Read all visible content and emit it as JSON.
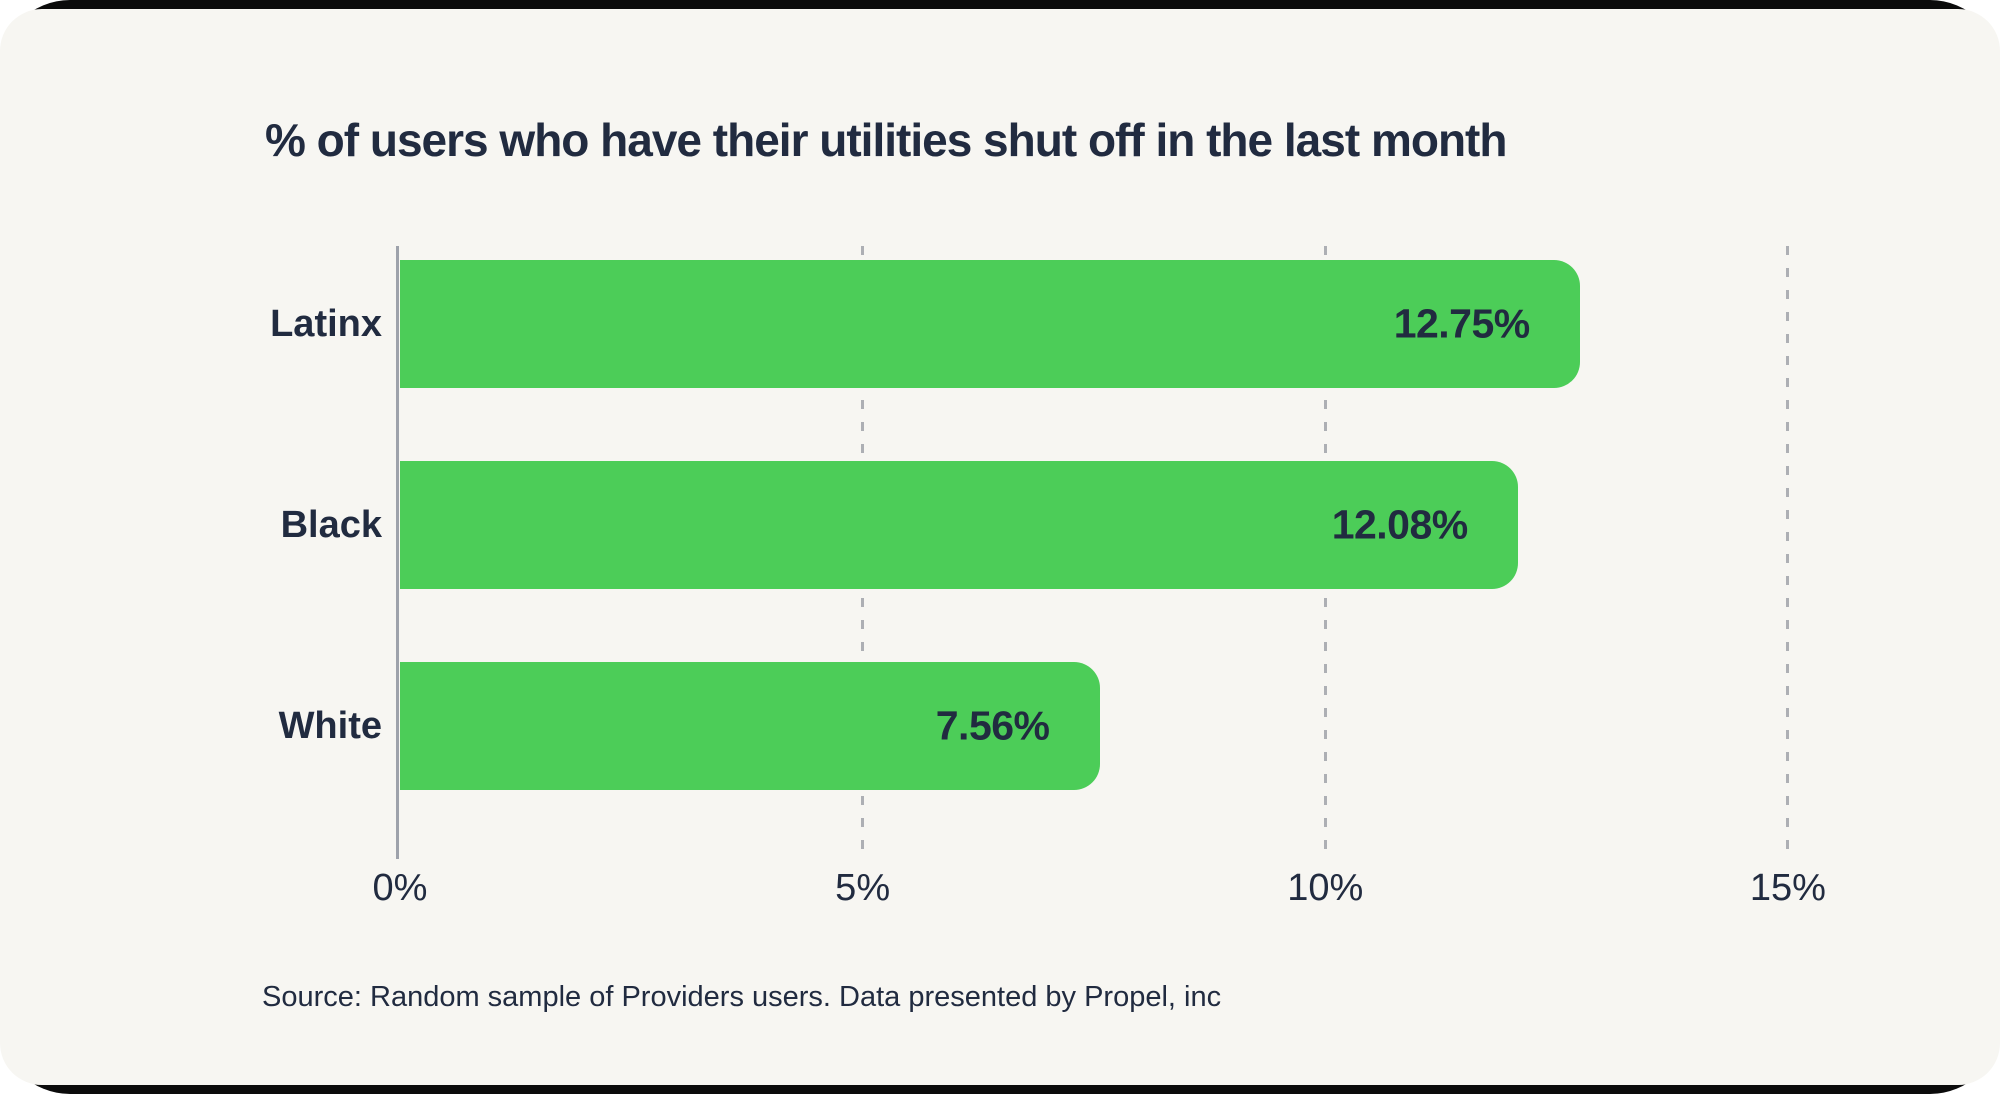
{
  "title": "% of users who have their utilities shut off in the last month",
  "source": "Source: Random sample of Providers users. Data presented by Propel, inc",
  "colors": {
    "bar": "#4ccd58",
    "text": "#212b40",
    "card_background": "#f7f6f2",
    "frame_background": "#0b0b0b",
    "axis_line": "#9ea2ab",
    "gridline": "#adafb4"
  },
  "chart_data": {
    "type": "bar",
    "orientation": "horizontal",
    "title": "% of users who have their utilities shut off in the last month",
    "categories": [
      "Latinx",
      "Black",
      "White"
    ],
    "values": [
      12.75,
      12.08,
      7.56
    ],
    "value_labels": [
      "12.75%",
      "12.08%",
      "7.56%"
    ],
    "x_tick_labels": [
      "0%",
      "5%",
      "10%",
      "15%"
    ],
    "x_tick_values": [
      0,
      5,
      10,
      15
    ],
    "xlim": [
      0,
      15
    ],
    "xlabel": "",
    "ylabel": "",
    "grid": "vertical-dashed",
    "value_label_position": "inside-end",
    "source": "Source: Random sample of Providers users. Data presented by Propel, inc"
  }
}
